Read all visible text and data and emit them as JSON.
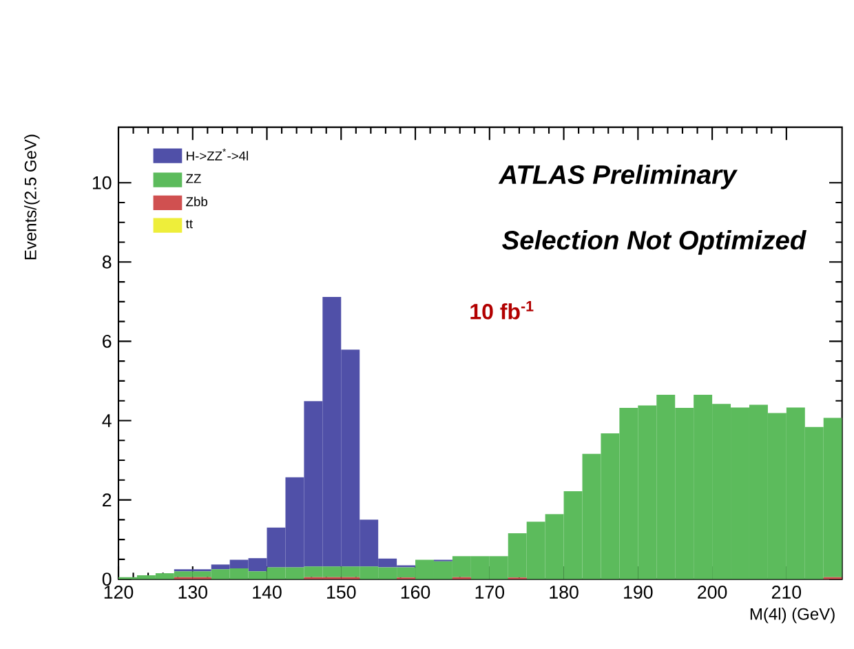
{
  "chart_data": {
    "type": "bar",
    "stacked": true,
    "xlabel": "M(4l) (GeV)",
    "ylabel": "Events/(2.5 GeV)",
    "x": [
      121.25,
      123.75,
      126.25,
      128.75,
      131.25,
      133.75,
      136.25,
      138.75,
      141.25,
      143.75,
      146.25,
      148.75,
      151.25,
      153.75,
      156.25,
      158.75,
      161.25,
      163.75,
      166.25,
      168.75,
      171.25,
      173.75,
      176.25,
      178.75,
      181.25,
      183.75,
      186.25,
      188.75,
      191.25,
      193.75,
      196.25,
      198.75,
      201.25,
      203.75,
      206.25,
      208.75,
      211.25,
      213.75,
      216.25
    ],
    "series": [
      {
        "name": "tt",
        "color": "#eeee3a",
        "values": [
          0,
          0,
          0,
          0,
          0,
          0,
          0,
          0,
          0,
          0,
          0,
          0,
          0,
          0,
          0,
          0,
          0,
          0,
          0,
          0,
          0,
          0,
          0,
          0,
          0,
          0,
          0,
          0,
          0,
          0,
          0,
          0,
          0,
          0,
          0,
          0,
          0,
          0,
          0
        ]
      },
      {
        "name": "Zbb",
        "color": "#d05050",
        "values": [
          0,
          0,
          0,
          0.05,
          0.05,
          0,
          0,
          0,
          0,
          0,
          0.05,
          0.05,
          0.05,
          0,
          0,
          0.04,
          0,
          0,
          0.05,
          0,
          0,
          0.04,
          0,
          0,
          0,
          0,
          0,
          0,
          0,
          0,
          0,
          0,
          0,
          0,
          0,
          0,
          0,
          0,
          0.05
        ]
      },
      {
        "name": "ZZ",
        "color": "#5cbb5c",
        "values": [
          0.05,
          0.1,
          0.15,
          0.15,
          0.15,
          0.25,
          0.27,
          0.2,
          0.3,
          0.3,
          0.27,
          0.27,
          0.27,
          0.32,
          0.3,
          0.26,
          0.49,
          0.45,
          0.53,
          0.58,
          0.58,
          1.12,
          1.45,
          1.64,
          2.22,
          3.16,
          3.68,
          4.32,
          4.38,
          4.65,
          4.32,
          4.65,
          4.42,
          4.33,
          4.4,
          4.19,
          4.33,
          3.84,
          4.02
        ]
      },
      {
        "name": "H->ZZ$^{*}$->4l",
        "color": "#5050a8",
        "values": [
          0,
          0,
          0,
          0.05,
          0.05,
          0.12,
          0.22,
          0.33,
          1.0,
          2.27,
          4.17,
          6.8,
          5.47,
          1.18,
          0.22,
          0.05,
          0,
          0.04,
          0,
          0,
          0,
          0,
          0,
          0,
          0,
          0,
          0,
          0,
          0,
          0,
          0,
          0,
          0,
          0,
          0,
          0,
          0,
          0,
          0
        ]
      }
    ],
    "xlim": [
      120,
      217.5
    ],
    "ylim": [
      0,
      11.4
    ],
    "xticks": [
      120,
      130,
      140,
      150,
      160,
      170,
      180,
      190,
      200,
      210
    ],
    "yticks": [
      0,
      2,
      4,
      6,
      8,
      10
    ],
    "legend": "top left",
    "grid": false,
    "annotations": [
      "ATLAS Preliminary",
      "Selection Not Optimized",
      "10 fb$^{-1}$"
    ]
  }
}
